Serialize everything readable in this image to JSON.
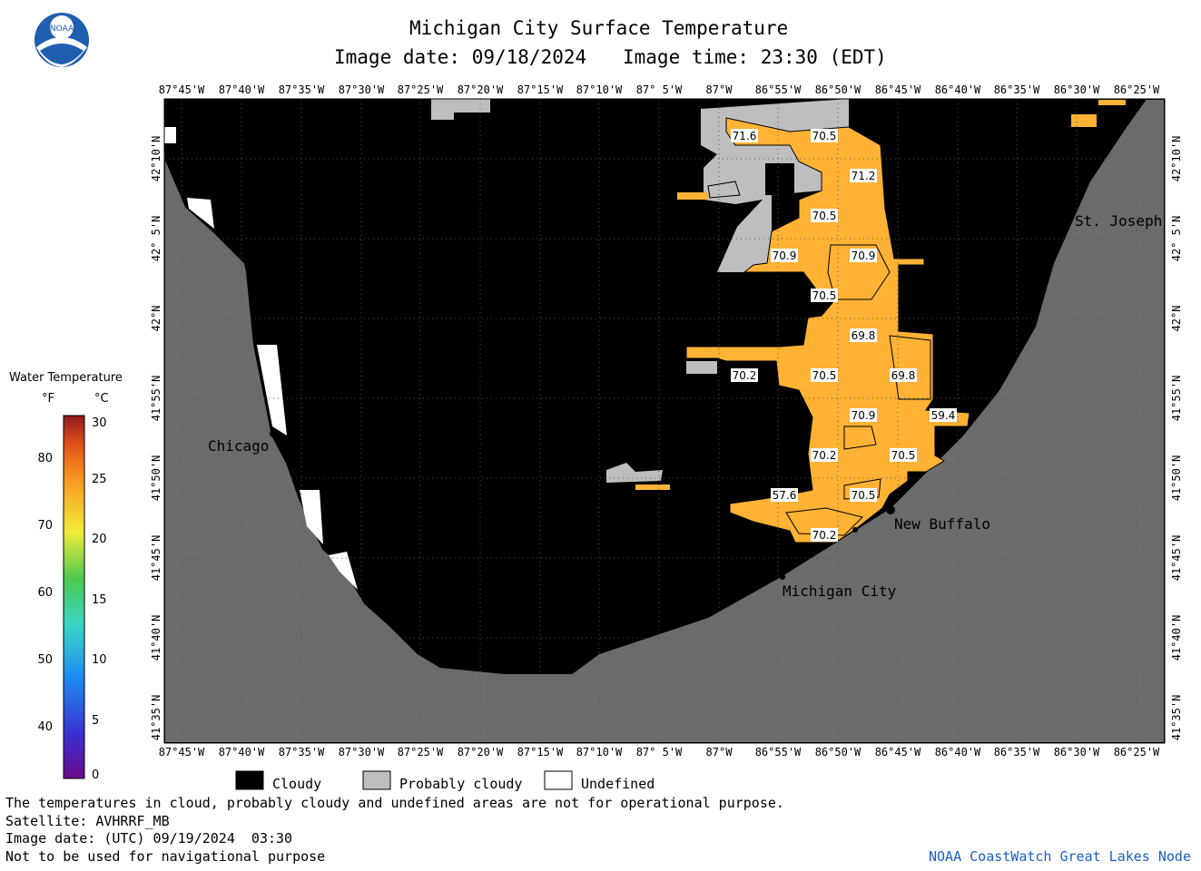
{
  "header": {
    "title": "Michigan City Surface Temperature",
    "date_label": "Image date: 09/18/2024",
    "time_label": "Image time: 23:30 (EDT)",
    "logo_text": "NOAA"
  },
  "axes": {
    "lon_ticks": [
      "87°45'W",
      "87°40'W",
      "87°35'W",
      "87°30'W",
      "87°25'W",
      "87°20'W",
      "87°15'W",
      "87°10'W",
      "87° 5'W",
      "87°W",
      "86°55'W",
      "86°50'W",
      "86°45'W",
      "86°40'W",
      "86°35'W",
      "86°30'W",
      "86°25'W"
    ],
    "lat_ticks": [
      "42°10'N",
      "42° 5'N",
      "42°N",
      "41°55'N",
      "41°50'N",
      "41°45'N",
      "41°40'N",
      "41°35'N"
    ]
  },
  "legend": {
    "title": "Water Temperature",
    "unit_f": "°F",
    "unit_c": "°C",
    "f_ticks": [
      "80",
      "70",
      "60",
      "50",
      "40"
    ],
    "c_ticks": [
      "30",
      "25",
      "20",
      "15",
      "10",
      "5",
      "0"
    ]
  },
  "places": [
    {
      "name": "Chicago"
    },
    {
      "name": "St. Joseph"
    },
    {
      "name": "New Buffalo"
    },
    {
      "name": "Michigan City"
    }
  ],
  "temperature_labels": [
    "71.6",
    "70.5",
    "71.2",
    "70.5",
    "70.9",
    "70.9",
    "70.5",
    "69.8",
    "70.2",
    "70.5",
    "69.8",
    "70.9",
    "59.4",
    "70.2",
    "70.5",
    "57.6",
    "70.5",
    "70.2"
  ],
  "key": {
    "cloudy": "Cloudy",
    "probably_cloudy": "Probably cloudy",
    "undefined": "Undefined"
  },
  "colors": {
    "water_warm": "#ffb234",
    "cloud": "#000000",
    "probably_cloudy": "#bebebe",
    "land": "#6b6b6b",
    "undefined": "#ffffff",
    "credit": "#1b5fc6"
  },
  "footer": {
    "disclaimer": "The temperatures in cloud, probably cloudy and undefined areas are not for operational purpose.",
    "satellite": "Satellite: AVHRRF_MB",
    "utc_date": "Image date: (UTC) 09/19/2024  03:30",
    "nav_warning": "Not to be used for navigational purpose",
    "credit": "NOAA CoastWatch Great Lakes Node"
  }
}
